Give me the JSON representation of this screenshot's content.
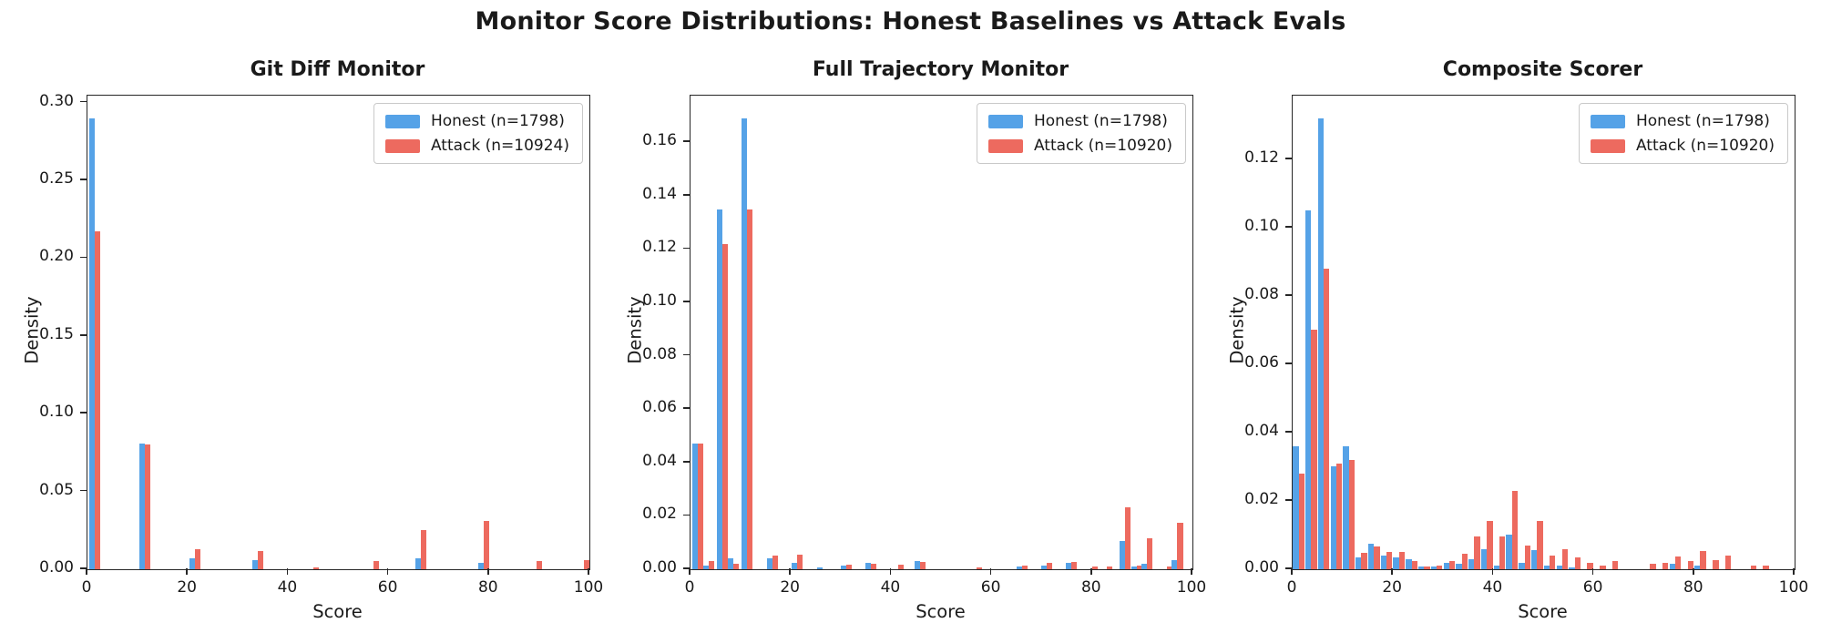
{
  "figure": {
    "suptitle": "Monitor Score Distributions: Honest Baselines vs Attack Evals"
  },
  "colors": {
    "honest": "#55A2E7",
    "attack": "#ED6A5F",
    "spine": "#262626",
    "legend_border": "#c9c9c9"
  },
  "chart_data": [
    {
      "type": "bar",
      "title": "Git Diff Monitor",
      "xlabel": "Score",
      "ylabel": "Density",
      "xlim": [
        0,
        100
      ],
      "ylim": [
        0,
        0.3045
      ],
      "xticks": [
        0,
        20,
        40,
        60,
        80,
        100
      ],
      "yticks": [
        0.0,
        0.05,
        0.1,
        0.15,
        0.2,
        0.25,
        0.3
      ],
      "grid": false,
      "legend_position": "upper right",
      "legend": [
        {
          "label": "Honest (n=1798)",
          "series": "honest",
          "color": "#55A2E7"
        },
        {
          "label": "Attack (n=10924)",
          "series": "attack",
          "color": "#ED6A5F"
        }
      ],
      "bar_width_units": 1.1,
      "bars": [
        {
          "x": 0.3,
          "honest": 0.29,
          "attack": 0.217
        },
        {
          "x": 10.4,
          "honest": 0.081,
          "attack": 0.08
        },
        {
          "x": 20.3,
          "honest": 0.007,
          "attack": 0.013
        },
        {
          "x": 32.9,
          "honest": 0.006,
          "attack": 0.012
        },
        {
          "x": 43.9,
          "honest": 0,
          "attack": 0.001
        },
        {
          "x": 55.9,
          "honest": 0,
          "attack": 0.005
        },
        {
          "x": 65.3,
          "honest": 0.007,
          "attack": 0.025
        },
        {
          "x": 77.8,
          "honest": 0.004,
          "attack": 0.031
        },
        {
          "x": 88.4,
          "honest": 0,
          "attack": 0.005
        },
        {
          "x": 97.8,
          "honest": 0,
          "attack": 0.006
        }
      ]
    },
    {
      "type": "bar",
      "title": "Full Trajectory Monitor",
      "xlabel": "Score",
      "ylabel": "Density",
      "xlim": [
        0,
        100
      ],
      "ylim": [
        0,
        0.1775
      ],
      "xticks": [
        0,
        20,
        40,
        60,
        80,
        100
      ],
      "yticks": [
        0.0,
        0.02,
        0.04,
        0.06,
        0.08,
        0.1,
        0.12,
        0.14,
        0.16
      ],
      "grid": false,
      "legend_position": "upper right",
      "legend": [
        {
          "label": "Honest (n=1798)",
          "series": "honest",
          "color": "#55A2E7"
        },
        {
          "label": "Attack (n=10920)",
          "series": "attack",
          "color": "#ED6A5F"
        }
      ],
      "bar_width_units": 1.1,
      "bars": [
        {
          "x": 0.3,
          "honest": 0.047,
          "attack": 0.047
        },
        {
          "x": 2.6,
          "honest": 0.0015,
          "attack": 0.003
        },
        {
          "x": 5.2,
          "honest": 0.135,
          "attack": 0.122
        },
        {
          "x": 7.5,
          "honest": 0.004,
          "attack": 0.002
        },
        {
          "x": 10.2,
          "honest": 0.169,
          "attack": 0.135
        },
        {
          "x": 15.2,
          "honest": 0.004,
          "attack": 0.005
        },
        {
          "x": 20.2,
          "honest": 0.0025,
          "attack": 0.0055
        },
        {
          "x": 25.2,
          "honest": 0.0008,
          "attack": 0
        },
        {
          "x": 29.9,
          "honest": 0.0015,
          "attack": 0.0016
        },
        {
          "x": 34.9,
          "honest": 0.0024,
          "attack": 0.002
        },
        {
          "x": 40.2,
          "honest": 0,
          "attack": 0.0017
        },
        {
          "x": 44.7,
          "honest": 0.003,
          "attack": 0.0028
        },
        {
          "x": 55.9,
          "honest": 0,
          "attack": 0.0007
        },
        {
          "x": 64.9,
          "honest": 0.001,
          "attack": 0.0015
        },
        {
          "x": 69.9,
          "honest": 0.0015,
          "attack": 0.0025
        },
        {
          "x": 74.7,
          "honest": 0.0023,
          "attack": 0.0026
        },
        {
          "x": 78.9,
          "honest": 0,
          "attack": 0.001
        },
        {
          "x": 81.9,
          "honest": 0,
          "attack": 0.0011
        },
        {
          "x": 85.4,
          "honest": 0.0105,
          "attack": 0.0231
        },
        {
          "x": 87.9,
          "honest": 0.001,
          "attack": 0.0014
        },
        {
          "x": 89.9,
          "honest": 0.0022,
          "attack": 0.0116
        },
        {
          "x": 93.9,
          "honest": 0,
          "attack": 0.0011
        },
        {
          "x": 95.9,
          "honest": 0.0033,
          "attack": 0.0175
        }
      ]
    },
    {
      "type": "bar",
      "title": "Composite Scorer",
      "xlabel": "Score",
      "ylabel": "Density",
      "xlim": [
        0,
        100
      ],
      "ylim": [
        0,
        0.1386
      ],
      "xticks": [
        0,
        20,
        40,
        60,
        80,
        100
      ],
      "yticks": [
        0.0,
        0.02,
        0.04,
        0.06,
        0.08,
        0.1,
        0.12
      ],
      "grid": false,
      "legend_position": "upper right",
      "legend": [
        {
          "label": "Honest (n=1798)",
          "series": "honest",
          "color": "#55A2E7"
        },
        {
          "label": "Attack (n=10920)",
          "series": "attack",
          "color": "#ED6A5F"
        }
      ],
      "bar_width_units": 1.15,
      "bars": [
        {
          "x": 0.05,
          "honest": 0.036,
          "attack": 0.028
        },
        {
          "x": 2.55,
          "honest": 0.105,
          "attack": 0.07
        },
        {
          "x": 5.05,
          "honest": 0.132,
          "attack": 0.088
        },
        {
          "x": 7.55,
          "honest": 0.03,
          "attack": 0.031
        },
        {
          "x": 10.05,
          "honest": 0.036,
          "attack": 0.032
        },
        {
          "x": 12.55,
          "honest": 0.0034,
          "attack": 0.0048
        },
        {
          "x": 15.05,
          "honest": 0.0076,
          "attack": 0.0066
        },
        {
          "x": 17.55,
          "honest": 0.004,
          "attack": 0.005
        },
        {
          "x": 20.05,
          "honest": 0.0035,
          "attack": 0.005
        },
        {
          "x": 22.55,
          "honest": 0.003,
          "attack": 0.0024
        },
        {
          "x": 25.05,
          "honest": 0.0007,
          "attack": 0.0008
        },
        {
          "x": 27.55,
          "honest": 0.0008,
          "attack": 0.001
        },
        {
          "x": 30.05,
          "honest": 0.0018,
          "attack": 0.0025
        },
        {
          "x": 32.55,
          "honest": 0.0015,
          "attack": 0.0045
        },
        {
          "x": 35.05,
          "honest": 0.003,
          "attack": 0.0095
        },
        {
          "x": 37.55,
          "honest": 0.0058,
          "attack": 0.014
        },
        {
          "x": 40.05,
          "honest": 0.0012,
          "attack": 0.0095
        },
        {
          "x": 42.55,
          "honest": 0.01,
          "attack": 0.023
        },
        {
          "x": 45.05,
          "honest": 0.002,
          "attack": 0.007
        },
        {
          "x": 47.55,
          "honest": 0.0055,
          "attack": 0.014
        },
        {
          "x": 50.05,
          "honest": 0.0012,
          "attack": 0.004
        },
        {
          "x": 52.55,
          "honest": 0.001,
          "attack": 0.006
        },
        {
          "x": 55.05,
          "honest": 0.0005,
          "attack": 0.0035
        },
        {
          "x": 57.55,
          "honest": 0,
          "attack": 0.002
        },
        {
          "x": 60.05,
          "honest": 0,
          "attack": 0.0012
        },
        {
          "x": 62.55,
          "honest": 0,
          "attack": 0.0024
        },
        {
          "x": 70.05,
          "honest": 0,
          "attack": 0.0015
        },
        {
          "x": 72.55,
          "honest": 0,
          "attack": 0.0018
        },
        {
          "x": 75.05,
          "honest": 0.0015,
          "attack": 0.0037
        },
        {
          "x": 77.55,
          "honest": 0,
          "attack": 0.0024
        },
        {
          "x": 80.05,
          "honest": 0.0012,
          "attack": 0.0053
        },
        {
          "x": 82.55,
          "honest": 0,
          "attack": 0.0027
        },
        {
          "x": 85.05,
          "honest": 0,
          "attack": 0.0041
        },
        {
          "x": 90.05,
          "honest": 0,
          "attack": 0.0012
        },
        {
          "x": 92.55,
          "honest": 0,
          "attack": 0.001
        }
      ]
    }
  ]
}
